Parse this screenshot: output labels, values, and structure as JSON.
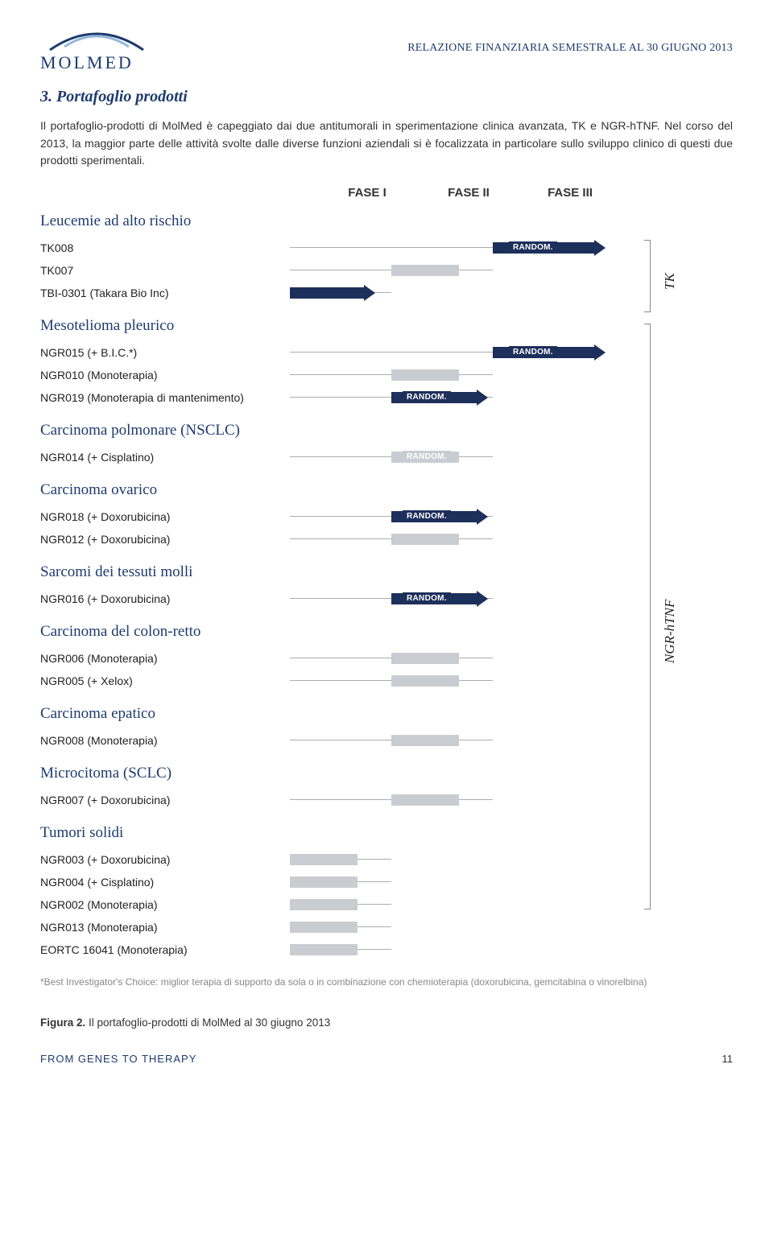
{
  "header": {
    "logo_text": "MOLMED",
    "doc_title": "RELAZIONE FINANZIARIA SEMESTRALE AL 30 GIUGNO 2013"
  },
  "section": {
    "num_title": "3.   Portafoglio prodotti",
    "para1": "Il portafoglio-prodotti di MolMed è capeggiato dai due antitumorali in sperimentazione clinica avanzata, TK e NGR-hTNF. Nel corso del 2013, la maggior parte delle attività svolte dalle diverse funzioni aziendali si è focalizzata in particolare sullo sviluppo clinico di questi due prodotti sperimentali."
  },
  "phases": {
    "p1": "FASE I",
    "p2": "FASE II",
    "p3": "FASE III"
  },
  "sidelabels": {
    "tk": "TK",
    "ngr": "NGR-hTNF"
  },
  "colors": {
    "navy": "#1d2f5b",
    "grey": "#c9cdd1",
    "line": "#adadad"
  },
  "groups": [
    {
      "title": "Leucemie ad alto rischio",
      "trials": [
        {
          "label": "TK008",
          "line_start": 0,
          "line_end": 378,
          "bar_start": 252,
          "bar_end": 378,
          "bar_color": "#1d2f5b",
          "arrow_color": "#1d2f5b",
          "random_at": 272
        },
        {
          "label": "TK007",
          "line_start": 0,
          "line_end": 252,
          "bar_start": 126,
          "bar_end": 210,
          "bar_color": "#c9cdd1"
        },
        {
          "label": "TBI-0301 (Takara Bio Inc)",
          "line_start": 0,
          "line_end": 126,
          "bar_start": 0,
          "bar_end": 92,
          "bar_color": "#1d2f5b",
          "arrow_color": "#1d2f5b"
        }
      ]
    },
    {
      "title": "Mesotelioma pleurico",
      "trials": [
        {
          "label": "NGR015 (+ B.I.C.*)",
          "line_start": 0,
          "line_end": 378,
          "bar_start": 252,
          "bar_end": 378,
          "bar_color": "#1d2f5b",
          "arrow_color": "#1d2f5b",
          "random_at": 272
        },
        {
          "label": "NGR010 (Monoterapia)",
          "line_start": 0,
          "line_end": 252,
          "bar_start": 126,
          "bar_end": 210,
          "bar_color": "#c9cdd1"
        },
        {
          "label": "NGR019 (Monoterapia di mantenimento)",
          "line_start": 0,
          "line_end": 252,
          "bar_start": 126,
          "bar_end": 232,
          "bar_color": "#1d2f5b",
          "arrow_color": "#1d2f5b",
          "random_at": 140
        }
      ]
    },
    {
      "title": "Carcinoma polmonare (NSCLC)",
      "trials": [
        {
          "label": "NGR014 (+ Cisplatino)",
          "line_start": 0,
          "line_end": 252,
          "bar_start": 126,
          "bar_end": 210,
          "bar_color": "#c9cdd1",
          "random_at": 140,
          "random_grey": true
        }
      ]
    },
    {
      "title": "Carcinoma ovarico",
      "trials": [
        {
          "label": "NGR018 (+ Doxorubicina)",
          "line_start": 0,
          "line_end": 252,
          "bar_start": 126,
          "bar_end": 232,
          "bar_color": "#1d2f5b",
          "arrow_color": "#1d2f5b",
          "random_at": 140
        },
        {
          "label": "NGR012 (+ Doxorubicina)",
          "line_start": 0,
          "line_end": 252,
          "bar_start": 126,
          "bar_end": 210,
          "bar_color": "#c9cdd1"
        }
      ]
    },
    {
      "title": "Sarcomi dei tessuti molli",
      "trials": [
        {
          "label": "NGR016 (+ Doxorubicina)",
          "line_start": 0,
          "line_end": 252,
          "bar_start": 126,
          "bar_end": 232,
          "bar_color": "#1d2f5b",
          "arrow_color": "#1d2f5b",
          "random_at": 140
        }
      ]
    },
    {
      "title": "Carcinoma del colon-retto",
      "trials": [
        {
          "label": "NGR006 (Monoterapia)",
          "line_start": 0,
          "line_end": 252,
          "bar_start": 126,
          "bar_end": 210,
          "bar_color": "#c9cdd1"
        },
        {
          "label": "NGR005 (+ Xelox)",
          "line_start": 0,
          "line_end": 252,
          "bar_start": 126,
          "bar_end": 210,
          "bar_color": "#c9cdd1"
        }
      ]
    },
    {
      "title": "Carcinoma epatico",
      "trials": [
        {
          "label": "NGR008 (Monoterapia)",
          "line_start": 0,
          "line_end": 252,
          "bar_start": 126,
          "bar_end": 210,
          "bar_color": "#c9cdd1"
        }
      ]
    },
    {
      "title": "Microcitoma (SCLC)",
      "trials": [
        {
          "label": "NGR007 (+ Doxorubicina)",
          "line_start": 0,
          "line_end": 252,
          "bar_start": 126,
          "bar_end": 210,
          "bar_color": "#c9cdd1"
        }
      ]
    },
    {
      "title": "Tumori solidi",
      "trials": [
        {
          "label": "NGR003 (+ Doxorubicina)",
          "line_start": 0,
          "line_end": 126,
          "bar_start": 0,
          "bar_end": 84,
          "bar_color": "#c9cdd1"
        },
        {
          "label": "NGR004 (+ Cisplatino)",
          "line_start": 0,
          "line_end": 126,
          "bar_start": 0,
          "bar_end": 84,
          "bar_color": "#c9cdd1"
        },
        {
          "label": "NGR002 (Monoterapia)",
          "line_start": 0,
          "line_end": 126,
          "bar_start": 0,
          "bar_end": 84,
          "bar_color": "#c9cdd1"
        },
        {
          "label": "NGR013 (Monoterapia)",
          "line_start": 0,
          "line_end": 126,
          "bar_start": 0,
          "bar_end": 84,
          "bar_color": "#c9cdd1"
        },
        {
          "label": "EORTC 16041 (Monoterapia)",
          "line_start": 0,
          "line_end": 126,
          "bar_start": 0,
          "bar_end": 84,
          "bar_color": "#c9cdd1"
        }
      ]
    }
  ],
  "random_label": "RANDOM.",
  "footnote": "*Best Investigator's Choice: miglior terapia di supporto da sola o in combinazione con chemioterapia (doxorubicina, gemcitabina o vinorelbina)",
  "figure": {
    "label": "Figura 2.",
    "caption": "Il portafoglio-prodotti di MolMed al 30 giugno 2013"
  },
  "footer": {
    "tag": "FROM GENES TO THERAPY",
    "page": "11"
  }
}
